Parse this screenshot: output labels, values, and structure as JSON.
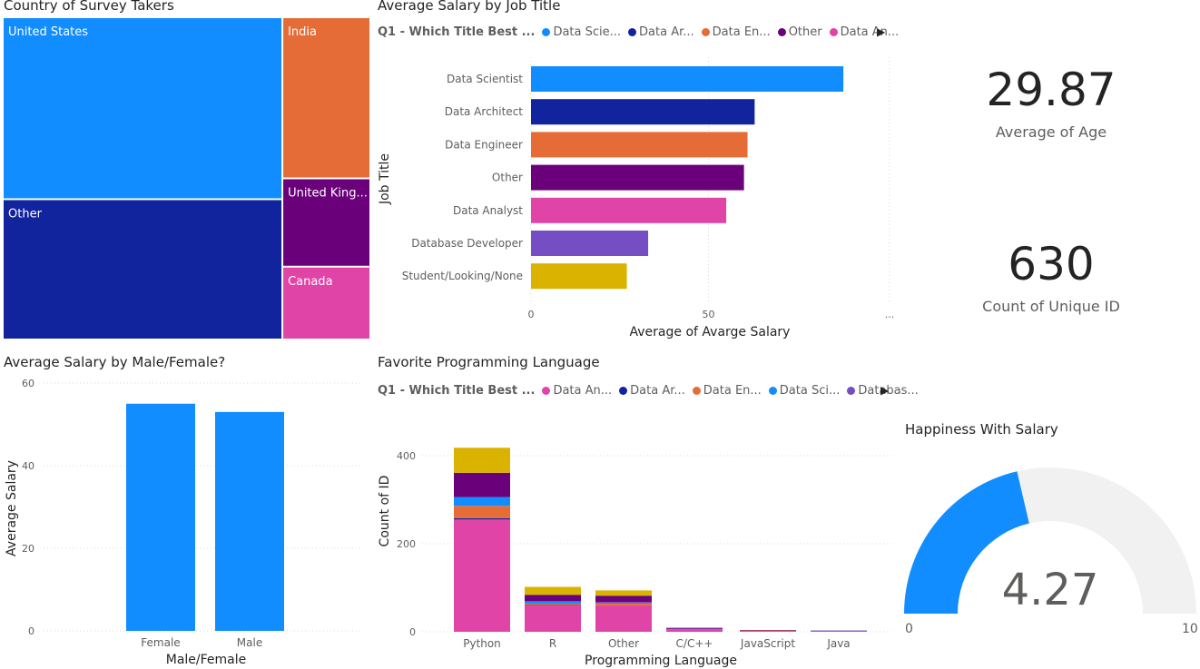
{
  "colors": {
    "data_scientist": "#118DFF",
    "data_architect": "#12239E",
    "data_engineer": "#E66C37",
    "other": "#6B007B",
    "data_analyst": "#E044A7",
    "database_developer": "#744EC2",
    "student": "#D9B300",
    "track": "#F1F1F1",
    "text_dark": "#252423",
    "text_mid": "#605e5c"
  },
  "treemap": {
    "title": "Country of Survey Takers",
    "chart_data": {
      "type": "treemap",
      "labels": [
        "United States",
        "Other",
        "India",
        "United Kingdom",
        "Canada"
      ],
      "display_labels": [
        "United States",
        "Other",
        "India",
        "United King...",
        "Canada"
      ],
      "values": [
        262,
        202,
        73,
        40,
        33
      ]
    }
  },
  "job_chart": {
    "title": "Average Salary by Job Title",
    "legend_title": "Q1 - Which Title Best ...",
    "legend_items": [
      "Data Scie...",
      "Data Ar...",
      "Data En...",
      "Other",
      "Data An..."
    ],
    "legend_colors": [
      "#118DFF",
      "#12239E",
      "#E66C37",
      "#6B007B",
      "#E044A7"
    ],
    "more_arrow": "▶",
    "ellipsis": "...",
    "chart_data": {
      "type": "bar",
      "orientation": "horizontal",
      "categories": [
        "Data Scientist",
        "Data Architect",
        "Data Engineer",
        "Other",
        "Data Analyst",
        "Database Developer",
        "Student/Looking/None"
      ],
      "values": [
        88,
        63,
        61,
        60,
        55,
        33,
        27
      ],
      "colors": [
        "#118DFF",
        "#12239E",
        "#E66C37",
        "#6B007B",
        "#E044A7",
        "#744EC2",
        "#D9B300"
      ],
      "xlabel": "Average of Avarge Salary",
      "ylabel": "Job Title",
      "xticks": [
        0,
        50
      ],
      "xlim": [
        0,
        100
      ]
    }
  },
  "kpi_age": {
    "value": "29.87",
    "label": "Average of  Age"
  },
  "kpi_count": {
    "value": "630",
    "label": "Count of Unique ID"
  },
  "gender_chart": {
    "title": "Average Salary by Male/Female?",
    "chart_data": {
      "type": "bar",
      "categories": [
        "Female",
        "Male"
      ],
      "values": [
        55,
        53
      ],
      "color": "#118DFF",
      "xlabel": "Male/Female",
      "ylabel": "Average Salary",
      "yticks": [
        0,
        20,
        40,
        60
      ],
      "ylim": [
        0,
        60
      ]
    }
  },
  "lang_chart": {
    "title": "Favorite Programming Language",
    "legend_title": "Q1 - Which Title Best ...",
    "legend_items": [
      "Data An...",
      "Data Ar...",
      "Data En...",
      "Data Sci...",
      "Databas..."
    ],
    "legend_colors": [
      "#E044A7",
      "#12239E",
      "#E66C37",
      "#118DFF",
      "#744EC2"
    ],
    "more_arrow": "▶",
    "chart_data": {
      "type": "bar",
      "stacked": true,
      "categories": [
        "Python",
        "R",
        "Other",
        "C/C++",
        "JavaScript",
        "Java"
      ],
      "xlabel": "Programming Language",
      "ylabel": "Count of ID",
      "yticks": [
        0,
        200,
        400
      ],
      "ylim": [
        0,
        430
      ],
      "series": [
        {
          "name": "Data Analyst",
          "color": "#E044A7",
          "values": [
            255,
            60,
            60,
            6,
            1,
            2
          ]
        },
        {
          "name": "Data Architect",
          "color": "#12239E",
          "values": [
            3,
            1,
            0,
            0,
            0,
            0
          ]
        },
        {
          "name": "Data Engineer",
          "color": "#E66C37",
          "values": [
            28,
            3,
            5,
            0,
            2,
            0
          ]
        },
        {
          "name": "Data Scientist",
          "color": "#118DFF",
          "values": [
            20,
            4,
            0,
            0,
            0,
            0
          ]
        },
        {
          "name": "Database Developer",
          "color": "#744EC2",
          "values": [
            0,
            2,
            3,
            1,
            0,
            1
          ]
        },
        {
          "name": "Other",
          "color": "#6B007B",
          "values": [
            55,
            14,
            14,
            2,
            1,
            0
          ]
        },
        {
          "name": "Student/Looking/None",
          "color": "#D9B300",
          "values": [
            57,
            18,
            12,
            0,
            0,
            0
          ]
        }
      ]
    }
  },
  "gauge": {
    "title": "Happiness With Salary",
    "value_label": "4.27",
    "min_label": "0",
    "max_label": "10",
    "chart_data": {
      "type": "gauge",
      "value": 4.27,
      "min": 0,
      "max": 10
    }
  }
}
